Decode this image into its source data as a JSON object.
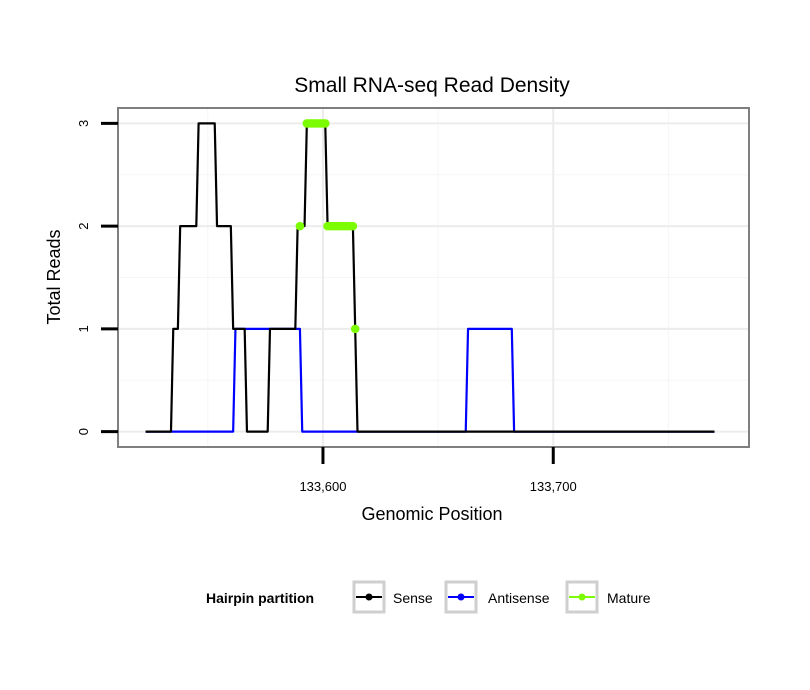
{
  "chart_data": {
    "type": "line",
    "title": "Small RNA-seq Read Density",
    "xlabel": "Genomic Position",
    "ylabel": "Total Reads",
    "xlim": [
      133511,
      133785
    ],
    "ylim": [
      -0.15,
      3.15
    ],
    "x_ticks": [
      133600,
      133700
    ],
    "x_tick_labels": [
      "133,600",
      "133,700"
    ],
    "y_ticks": [
      0,
      1,
      2,
      3
    ],
    "y_tick_labels": [
      "0",
      "1",
      "2",
      "3"
    ],
    "grid": true,
    "legend": {
      "title": "Hairpin partition",
      "position": "bottom",
      "entries": [
        "Sense",
        "Antisense",
        "Mature"
      ]
    },
    "series": [
      {
        "name": "Sense",
        "color": "#000000",
        "style": "line",
        "x": [
          133523,
          133534,
          133535,
          133537,
          133538,
          133545,
          133546,
          133553,
          133554,
          133560,
          133561,
          133566,
          133567,
          133576,
          133577,
          133588,
          133589,
          133592,
          133593,
          133601,
          133602,
          133613,
          133614,
          133615,
          133770
        ],
        "y": [
          0,
          0,
          1,
          1,
          2,
          2,
          3,
          3,
          2,
          2,
          1,
          1,
          0,
          0,
          1,
          1,
          2,
          2,
          3,
          3,
          2,
          2,
          1,
          0,
          0
        ]
      },
      {
        "name": "Antisense",
        "color": "#0000ff",
        "style": "line",
        "x": [
          133523,
          133561,
          133562,
          133590,
          133591,
          133662,
          133663,
          133682,
          133683,
          133770
        ],
        "y": [
          0,
          0,
          1,
          1,
          0,
          0,
          1,
          1,
          0,
          0
        ]
      },
      {
        "name": "Mature",
        "color": "#7cfc00",
        "style": "points",
        "x": [
          133590,
          133593,
          133594,
          133595,
          133596,
          133597,
          133598,
          133599,
          133600,
          133601,
          133602,
          133603,
          133604,
          133605,
          133606,
          133607,
          133608,
          133609,
          133610,
          133611,
          133612,
          133613,
          133614
        ],
        "y": [
          2,
          3,
          3,
          3,
          3,
          3,
          3,
          3,
          3,
          3,
          2,
          2,
          2,
          2,
          2,
          2,
          2,
          2,
          2,
          2,
          2,
          2,
          1
        ]
      }
    ]
  }
}
